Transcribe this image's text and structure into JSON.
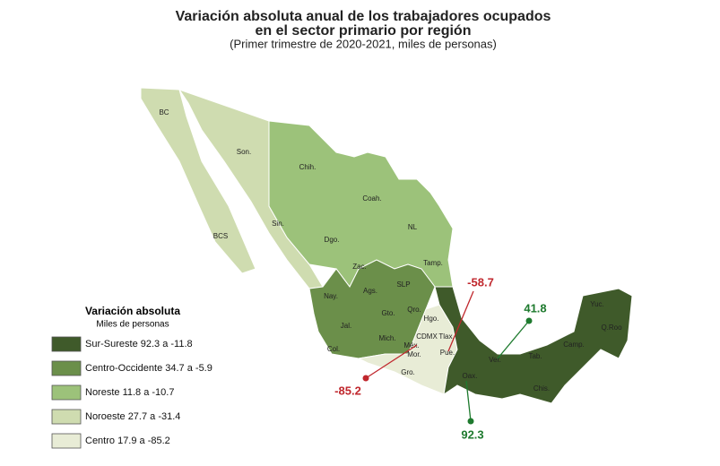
{
  "title": {
    "line1": "Variación absoluta anual de los trabajadores ocupados",
    "line2": "en el sector primario por región",
    "subtitle": "(Primer trimestre de 2020-2021, miles de personas)"
  },
  "legend": {
    "title": "Variación absoluta",
    "subtitle": "Miles de personas",
    "items": [
      {
        "label": "Sur-Sureste 92.3 a -11.8",
        "color": "#3f5a2a"
      },
      {
        "label": "Centro-Occidente 34.7 a -5.9",
        "color": "#6b8f4a"
      },
      {
        "label": "Noreste 11.8 a -10.7",
        "color": "#9cc27a"
      },
      {
        "label": "Noroeste 27.7  a -31.4",
        "color": "#cfdcb0"
      },
      {
        "label": "Centro 17.9 a -85.2",
        "color": "#e8ecd6"
      }
    ]
  },
  "states": [
    "BC",
    "Son.",
    "Chih.",
    "Coah.",
    "NL",
    "Tamp.",
    "Sin.",
    "Dgo.",
    "BCS",
    "Zac.",
    "Nay.",
    "Ags.",
    "SLP",
    "Jal.",
    "Gto.",
    "Qro.",
    "Hgo.",
    "Col.",
    "Mich.",
    "Méx.",
    "CDMX",
    "Tlax.",
    "Mor.",
    "Pue.",
    "Gro.",
    "Oax.",
    "Ver.",
    "Tab.",
    "Chis.",
    "Camp.",
    "Yuc.",
    "Q.Roo"
  ],
  "callouts": [
    {
      "value": "-58.7",
      "color": "#c0272d"
    },
    {
      "value": "41.8",
      "color": "#1e7a2e"
    },
    {
      "value": "-85.2",
      "color": "#c0272d"
    },
    {
      "value": "92.3",
      "color": "#1e7a2e"
    }
  ]
}
